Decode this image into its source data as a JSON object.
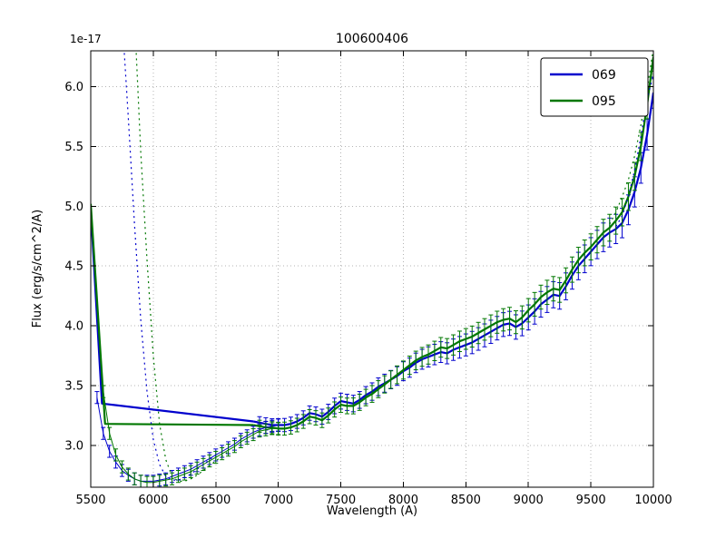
{
  "chart_data": {
    "type": "line",
    "title": "100600406",
    "xlabel": "Wavelength (A)",
    "ylabel": "Flux (erg/s/cm^2/A)",
    "offset_text": "1e-17",
    "xlim": [
      5500,
      10000
    ],
    "ylim": [
      2.65,
      6.3
    ],
    "xticks": [
      5500,
      6000,
      6500,
      7000,
      7500,
      8000,
      8500,
      9000,
      9500,
      10000
    ],
    "yticks": [
      3.0,
      3.5,
      4.0,
      4.5,
      5.0,
      5.5,
      6.0
    ],
    "grid": true,
    "colors": {
      "blue": "#0000cd",
      "green": "#007700",
      "grid": "#b4b4b4",
      "axis": "#000000"
    },
    "legend": {
      "position": "upper right",
      "entries": [
        {
          "label": "069",
          "color": "#0000cd"
        },
        {
          "label": "095",
          "color": "#007700"
        }
      ]
    },
    "series": [
      {
        "name": "069-interp",
        "color": "#0000cd",
        "style": "solid",
        "width": 2.2,
        "x": [
          5500,
          5590,
          6800
        ],
        "y": [
          4.97,
          3.35,
          3.2
        ]
      },
      {
        "name": "095-interp",
        "color": "#007700",
        "style": "solid",
        "width": 2.2,
        "x": [
          5500,
          5615,
          6800
        ],
        "y": [
          5.02,
          3.18,
          3.17
        ]
      },
      {
        "name": "069",
        "color": "#0000cd",
        "style": "solid",
        "width": 2.2,
        "yerr": 0.05,
        "yerr_end": 0.13,
        "err_start": 6850,
        "x_start": 6800,
        "x_step": 50,
        "y": [
          3.2,
          3.19,
          3.18,
          3.17,
          3.17,
          3.17,
          3.18,
          3.2,
          3.23,
          3.27,
          3.26,
          3.24,
          3.28,
          3.33,
          3.37,
          3.36,
          3.35,
          3.38,
          3.42,
          3.45,
          3.49,
          3.52,
          3.55,
          3.58,
          3.62,
          3.65,
          3.69,
          3.72,
          3.74,
          3.76,
          3.78,
          3.77,
          3.8,
          3.82,
          3.84,
          3.86,
          3.89,
          3.92,
          3.95,
          3.98,
          4.01,
          4.02,
          3.99,
          4.02,
          4.07,
          4.12,
          4.18,
          4.22,
          4.26,
          4.25,
          4.33,
          4.42,
          4.5,
          4.56,
          4.62,
          4.68,
          4.74,
          4.78,
          4.81,
          4.86,
          4.97,
          5.12,
          5.32,
          5.6,
          5.95
        ]
      },
      {
        "name": "095",
        "color": "#007700",
        "style": "solid",
        "width": 2.2,
        "yerr": 0.05,
        "yerr_end": 0.12,
        "err_start": 6850,
        "x_start": 6800,
        "x_step": 50,
        "y": [
          3.17,
          3.16,
          3.15,
          3.15,
          3.14,
          3.14,
          3.15,
          3.17,
          3.2,
          3.24,
          3.23,
          3.21,
          3.25,
          3.3,
          3.34,
          3.33,
          3.33,
          3.36,
          3.4,
          3.43,
          3.47,
          3.51,
          3.55,
          3.59,
          3.63,
          3.67,
          3.71,
          3.74,
          3.76,
          3.79,
          3.82,
          3.81,
          3.84,
          3.87,
          3.89,
          3.91,
          3.94,
          3.97,
          4.0,
          4.03,
          4.05,
          4.06,
          4.03,
          4.07,
          4.13,
          4.18,
          4.24,
          4.28,
          4.31,
          4.3,
          4.38,
          4.47,
          4.55,
          4.61,
          4.66,
          4.72,
          4.78,
          4.82,
          4.88,
          4.95,
          5.08,
          5.25,
          5.5,
          5.85,
          6.25
        ]
      },
      {
        "name": "069-data",
        "color": "#0000cd",
        "style": "solid",
        "width": 1,
        "yerr": 0.05,
        "yerr_end": 0.05,
        "x_start": 5550,
        "x_step": 50,
        "y": [
          3.4,
          3.1,
          2.95,
          2.86,
          2.79,
          2.75,
          2.72,
          2.7,
          2.7,
          2.7,
          2.71,
          2.72,
          2.74,
          2.76,
          2.78,
          2.8,
          2.83,
          2.86,
          2.89,
          2.92,
          2.95,
          2.98,
          3.01,
          3.05,
          3.08,
          3.11,
          3.13,
          3.15,
          3.16,
          3.17
        ]
      },
      {
        "name": "095-data",
        "color": "#007700",
        "style": "solid",
        "width": 1,
        "yerr": 0.05,
        "yerr_end": 0.05,
        "x_start": 5600,
        "x_step": 50,
        "y": [
          3.45,
          3.1,
          2.92,
          2.82,
          2.76,
          2.72,
          2.7,
          2.69,
          2.69,
          2.7,
          2.71,
          2.72,
          2.74,
          2.76,
          2.78,
          2.81,
          2.84,
          2.87,
          2.9,
          2.93,
          2.96,
          2.99,
          3.03,
          3.06,
          3.09,
          3.12,
          3.13,
          3.14,
          3.14
        ]
      },
      {
        "name": "069-raw",
        "color": "#0000cd",
        "style": "dotted",
        "width": 1.2,
        "x_start": 5750,
        "x_step": 50,
        "y": [
          6.6,
          5.75,
          4.85,
          4.05,
          3.45,
          3.05,
          2.84,
          2.74,
          2.71,
          2.71,
          2.73,
          2.76,
          2.8,
          2.84,
          2.88,
          2.92
        ]
      },
      {
        "name": "095-raw",
        "color": "#007700",
        "style": "dotted",
        "width": 1.2,
        "x_start": 5850,
        "x_step": 50,
        "y": [
          6.6,
          5.45,
          4.55,
          3.75,
          3.18,
          2.88,
          2.74,
          2.7,
          2.7,
          2.72,
          2.75,
          2.79,
          2.83,
          2.87,
          2.91,
          2.95
        ]
      },
      {
        "name": "069-raw-tail",
        "color": "#0000cd",
        "style": "dotted",
        "width": 1.2,
        "x_start": 9700,
        "x_step": 50,
        "y": [
          4.83,
          4.92,
          5.08,
          5.3,
          5.58,
          5.9,
          6.1
        ]
      },
      {
        "name": "095-raw-tail",
        "color": "#007700",
        "style": "dotted",
        "width": 1.2,
        "x_start": 9650,
        "x_step": 50,
        "y": [
          4.85,
          4.95,
          5.08,
          5.22,
          5.42,
          5.68,
          5.98,
          6.32
        ]
      }
    ]
  }
}
